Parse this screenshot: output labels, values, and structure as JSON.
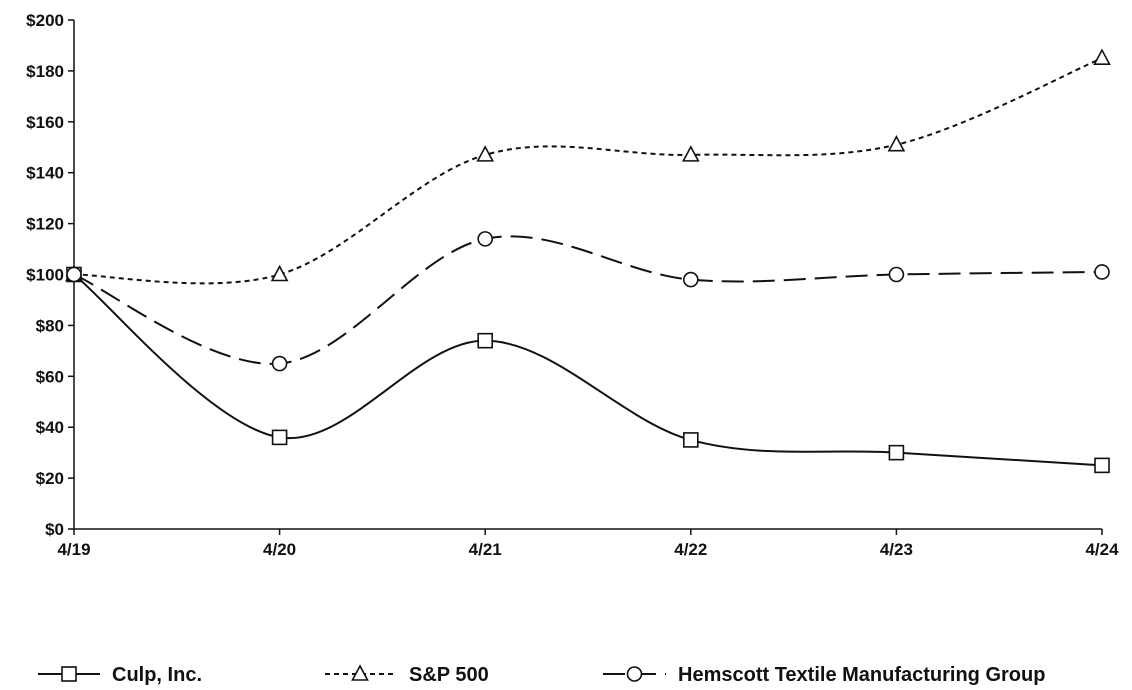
{
  "chart_data": {
    "type": "line",
    "title": "",
    "xlabel": "",
    "ylabel": "",
    "categories": [
      "4/19",
      "4/20",
      "4/21",
      "4/22",
      "4/23",
      "4/24"
    ],
    "yticks": [
      "$0",
      "$20",
      "$40",
      "$60",
      "$80",
      "$100",
      "$120",
      "$140",
      "$160",
      "$180",
      "$200"
    ],
    "ylim": [
      0,
      200
    ],
    "grid": false,
    "legend_position": "bottom",
    "series": [
      {
        "name": "Culp, Inc.",
        "values": [
          100,
          36,
          74,
          35,
          30,
          25
        ],
        "marker": "square",
        "dash": "solid",
        "color": "#111111"
      },
      {
        "name": "S&P 500",
        "values": [
          100,
          100,
          147,
          147,
          151,
          185
        ],
        "marker": "triangle",
        "dash": "dotted",
        "color": "#111111"
      },
      {
        "name": "Hemscott Textile Manufacturing Group",
        "values": [
          100,
          65,
          114,
          98,
          100,
          101
        ],
        "marker": "circle",
        "dash": "long-dash",
        "color": "#111111"
      }
    ]
  }
}
